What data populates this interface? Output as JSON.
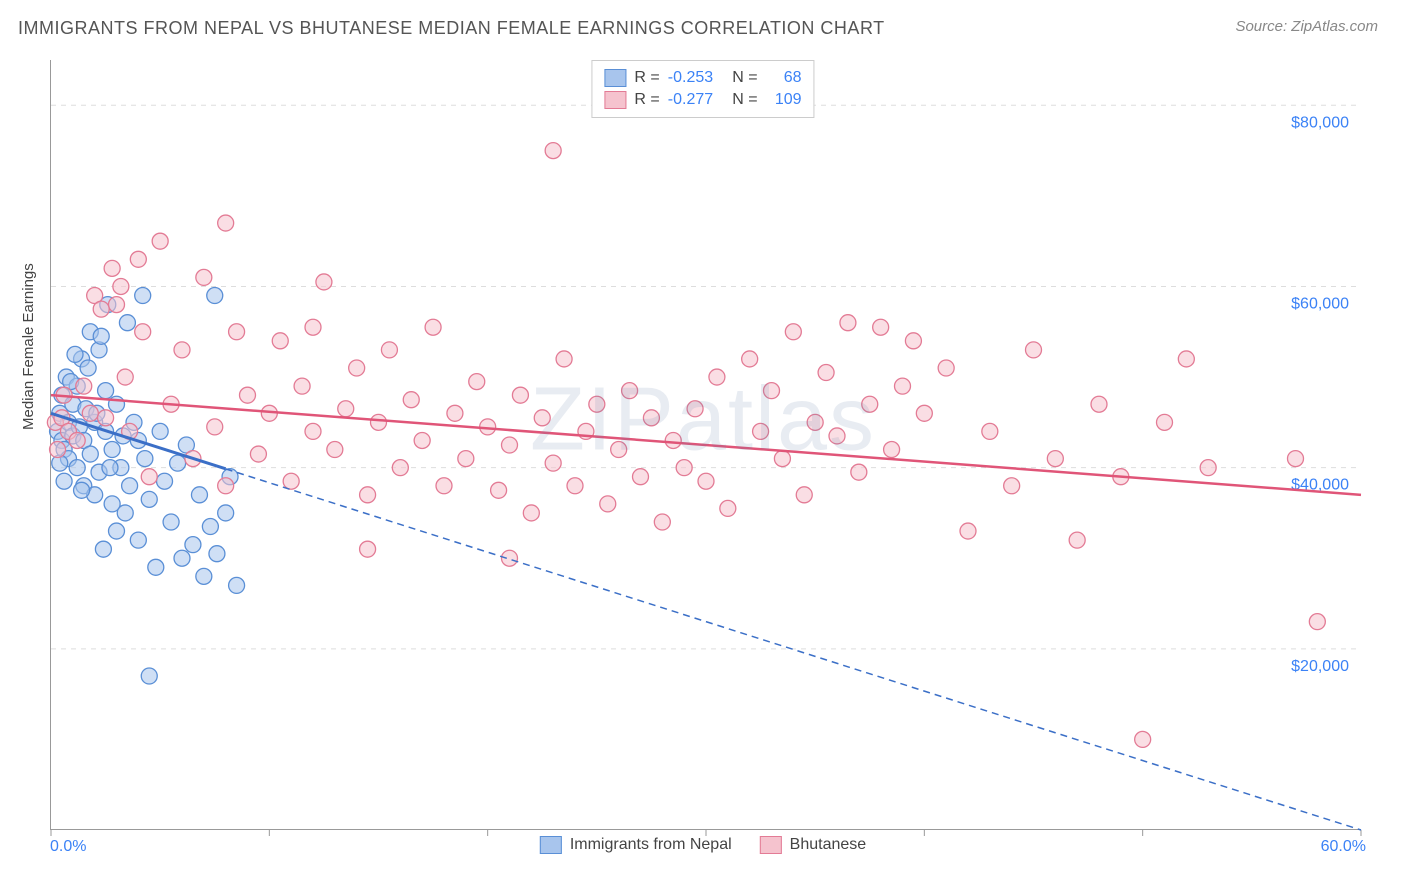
{
  "title": "IMMIGRANTS FROM NEPAL VS BHUTANESE MEDIAN FEMALE EARNINGS CORRELATION CHART",
  "source": "Source: ZipAtlas.com",
  "watermark": "ZIPatlas",
  "ylabel": "Median Female Earnings",
  "chart": {
    "type": "scatter",
    "xmin": 0,
    "xmax": 60,
    "ymin": 0,
    "ymax": 85000,
    "xtick_min_label": "0.0%",
    "xtick_max_label": "60.0%",
    "xtick_marks": [
      0,
      10,
      20,
      30,
      40,
      50,
      60
    ],
    "yticks": [
      {
        "v": 20000,
        "label": "$20,000"
      },
      {
        "v": 40000,
        "label": "$40,000"
      },
      {
        "v": 60000,
        "label": "$60,000"
      },
      {
        "v": 80000,
        "label": "$80,000"
      }
    ],
    "background_color": "#ffffff",
    "grid_color": "#dddddd",
    "axis_font_color": "#3b82f6",
    "label_font_color": "#444444",
    "marker_radius": 8,
    "marker_opacity": 0.55,
    "series": [
      {
        "name": "Immigrants from Nepal",
        "fill": "#a8c5ed",
        "stroke": "#5a8fd6",
        "line_color": "#3b6fc7",
        "line_dash": "7 5",
        "line_solid_xmax": 8,
        "R": "-0.253",
        "N": "68",
        "trend": {
          "x1": 0,
          "y1": 46000,
          "x2": 60,
          "y2": 0
        },
        "points": [
          [
            0.3,
            44000
          ],
          [
            0.4,
            46000
          ],
          [
            0.5,
            43000
          ],
          [
            0.5,
            48000
          ],
          [
            0.6,
            42000
          ],
          [
            0.7,
            50000
          ],
          [
            0.8,
            45000
          ],
          [
            0.8,
            41000
          ],
          [
            1.0,
            47000
          ],
          [
            1.0,
            43500
          ],
          [
            1.2,
            49000
          ],
          [
            1.2,
            40000
          ],
          [
            1.3,
            44500
          ],
          [
            1.4,
            52000
          ],
          [
            1.5,
            38000
          ],
          [
            1.5,
            43000
          ],
          [
            1.6,
            46500
          ],
          [
            1.8,
            55000
          ],
          [
            1.8,
            41500
          ],
          [
            2.0,
            37000
          ],
          [
            2.0,
            45000
          ],
          [
            2.2,
            53000
          ],
          [
            2.2,
            39500
          ],
          [
            2.4,
            31000
          ],
          [
            2.5,
            44000
          ],
          [
            2.5,
            48500
          ],
          [
            2.6,
            58000
          ],
          [
            2.8,
            36000
          ],
          [
            2.8,
            42000
          ],
          [
            3.0,
            33000
          ],
          [
            3.0,
            47000
          ],
          [
            3.2,
            40000
          ],
          [
            3.4,
            35000
          ],
          [
            3.6,
            38000
          ],
          [
            3.8,
            45000
          ],
          [
            4.0,
            32000
          ],
          [
            4.0,
            43000
          ],
          [
            4.2,
            59000
          ],
          [
            4.3,
            41000
          ],
          [
            4.5,
            36500
          ],
          [
            4.8,
            29000
          ],
          [
            5.0,
            44000
          ],
          [
            5.2,
            38500
          ],
          [
            5.5,
            34000
          ],
          [
            5.8,
            40500
          ],
          [
            6.0,
            30000
          ],
          [
            6.2,
            42500
          ],
          [
            6.5,
            31500
          ],
          [
            6.8,
            37000
          ],
          [
            7.0,
            28000
          ],
          [
            7.3,
            33500
          ],
          [
            7.6,
            30500
          ],
          [
            8.0,
            35000
          ],
          [
            8.2,
            39000
          ],
          [
            8.5,
            27000
          ],
          [
            4.5,
            17000
          ],
          [
            7.5,
            59000
          ],
          [
            3.5,
            56000
          ],
          [
            2.3,
            54500
          ],
          [
            1.7,
            51000
          ],
          [
            0.9,
            49500
          ],
          [
            1.1,
            52500
          ],
          [
            0.6,
            38500
          ],
          [
            0.4,
            40500
          ],
          [
            1.4,
            37500
          ],
          [
            2.1,
            46000
          ],
          [
            2.7,
            40000
          ],
          [
            3.3,
            43500
          ]
        ]
      },
      {
        "name": "Bhutanese",
        "fill": "#f5c3ce",
        "stroke": "#e37b95",
        "line_color": "#e05578",
        "line_dash": "none",
        "line_solid_xmax": 60,
        "R": "-0.277",
        "N": "109",
        "trend": {
          "x1": 0,
          "y1": 48000,
          "x2": 60,
          "y2": 37000
        },
        "points": [
          [
            0.2,
            45000
          ],
          [
            0.3,
            42000
          ],
          [
            0.5,
            45500
          ],
          [
            0.6,
            48000
          ],
          [
            0.8,
            44000
          ],
          [
            1.2,
            43000
          ],
          [
            1.5,
            49000
          ],
          [
            1.8,
            46000
          ],
          [
            2.5,
            45500
          ],
          [
            2.8,
            62000
          ],
          [
            3.0,
            58000
          ],
          [
            3.2,
            60000
          ],
          [
            3.4,
            50000
          ],
          [
            3.6,
            44000
          ],
          [
            4.0,
            63000
          ],
          [
            4.2,
            55000
          ],
          [
            4.5,
            39000
          ],
          [
            5.0,
            65000
          ],
          [
            5.5,
            47000
          ],
          [
            6.0,
            53000
          ],
          [
            6.5,
            41000
          ],
          [
            7.0,
            61000
          ],
          [
            7.5,
            44500
          ],
          [
            8.0,
            38000
          ],
          [
            8.5,
            55000
          ],
          [
            9.0,
            48000
          ],
          [
            9.5,
            41500
          ],
          [
            10.0,
            46000
          ],
          [
            10.5,
            54000
          ],
          [
            11.0,
            38500
          ],
          [
            11.5,
            49000
          ],
          [
            12.0,
            44000
          ],
          [
            12.5,
            60500
          ],
          [
            13.0,
            42000
          ],
          [
            13.5,
            46500
          ],
          [
            14.0,
            51000
          ],
          [
            14.5,
            37000
          ],
          [
            15.0,
            45000
          ],
          [
            15.5,
            53000
          ],
          [
            16.0,
            40000
          ],
          [
            16.5,
            47500
          ],
          [
            17.0,
            43000
          ],
          [
            17.5,
            55500
          ],
          [
            18.0,
            38000
          ],
          [
            18.5,
            46000
          ],
          [
            19.0,
            41000
          ],
          [
            19.5,
            49500
          ],
          [
            20.0,
            44500
          ],
          [
            20.5,
            37500
          ],
          [
            21.0,
            42500
          ],
          [
            21.5,
            48000
          ],
          [
            22.0,
            35000
          ],
          [
            22.5,
            45500
          ],
          [
            23.0,
            40500
          ],
          [
            23.5,
            52000
          ],
          [
            24.0,
            38000
          ],
          [
            24.5,
            44000
          ],
          [
            25.0,
            47000
          ],
          [
            25.5,
            36000
          ],
          [
            26.0,
            42000
          ],
          [
            26.5,
            48500
          ],
          [
            27.0,
            39000
          ],
          [
            27.5,
            45500
          ],
          [
            28.0,
            34000
          ],
          [
            28.5,
            43000
          ],
          [
            29.0,
            40000
          ],
          [
            29.5,
            46500
          ],
          [
            30.0,
            38500
          ],
          [
            30.5,
            50000
          ],
          [
            31.0,
            35500
          ],
          [
            32.0,
            52000
          ],
          [
            32.5,
            44000
          ],
          [
            33.0,
            48500
          ],
          [
            33.5,
            41000
          ],
          [
            34.0,
            55000
          ],
          [
            34.5,
            37000
          ],
          [
            35.0,
            45000
          ],
          [
            35.5,
            50500
          ],
          [
            36.0,
            43500
          ],
          [
            36.5,
            56000
          ],
          [
            37.0,
            39500
          ],
          [
            37.5,
            47000
          ],
          [
            38.0,
            55500
          ],
          [
            38.5,
            42000
          ],
          [
            39.0,
            49000
          ],
          [
            39.5,
            54000
          ],
          [
            40.0,
            46000
          ],
          [
            41.0,
            51000
          ],
          [
            42.0,
            33000
          ],
          [
            43.0,
            44000
          ],
          [
            44.0,
            38000
          ],
          [
            45.0,
            53000
          ],
          [
            46.0,
            41000
          ],
          [
            47.0,
            32000
          ],
          [
            48.0,
            47000
          ],
          [
            49.0,
            39000
          ],
          [
            50.0,
            10000
          ],
          [
            51.0,
            45000
          ],
          [
            52.0,
            52000
          ],
          [
            53.0,
            40000
          ],
          [
            57.0,
            41000
          ],
          [
            58.0,
            23000
          ],
          [
            23.0,
            75000
          ],
          [
            12.0,
            55500
          ],
          [
            8.0,
            67000
          ],
          [
            14.5,
            31000
          ],
          [
            21.0,
            30000
          ],
          [
            2.0,
            59000
          ],
          [
            2.3,
            57500
          ]
        ]
      }
    ]
  },
  "bottom_legend": [
    {
      "label": "Immigrants from Nepal",
      "fill": "#a8c5ed",
      "stroke": "#5a8fd6"
    },
    {
      "label": "Bhutanese",
      "fill": "#f5c3ce",
      "stroke": "#e37b95"
    }
  ]
}
